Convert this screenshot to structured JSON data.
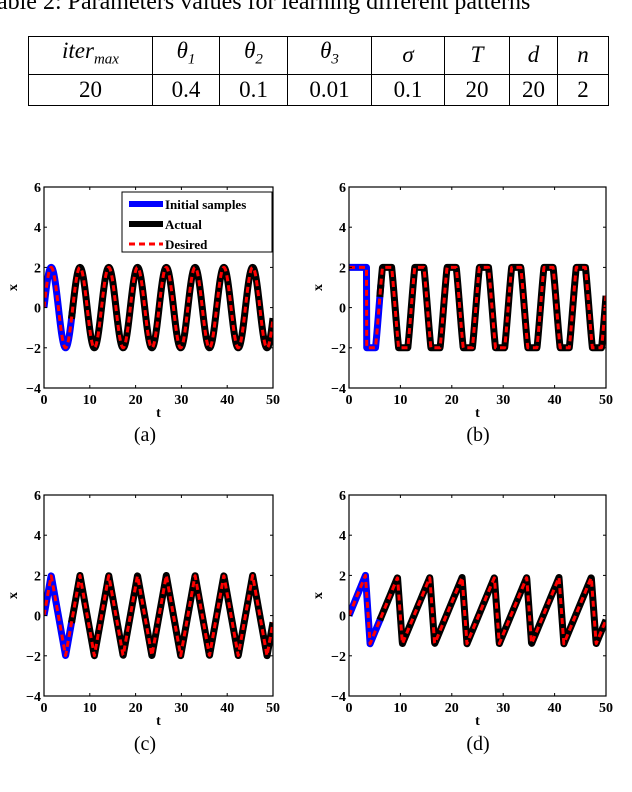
{
  "caption": "Table 2: Parameters values for learning different patterns",
  "table": {
    "headers": [
      {
        "base": "iter",
        "sub": "max"
      },
      {
        "base": "θ",
        "sub": "1"
      },
      {
        "base": "θ",
        "sub": "2"
      },
      {
        "base": "θ",
        "sub": "3"
      },
      {
        "base": "σ",
        "sub": ""
      },
      {
        "base": "T",
        "sub": ""
      },
      {
        "base": "d",
        "sub": ""
      },
      {
        "base": "n",
        "sub": ""
      }
    ],
    "values": [
      "20",
      "0.4",
      "0.1",
      "0.01",
      "0.1",
      "20",
      "20",
      "2"
    ]
  },
  "legend": {
    "items": [
      {
        "label": "Initial samples",
        "color": "#0000ff",
        "style": "solid"
      },
      {
        "label": "Actual",
        "color": "#000000",
        "style": "solid"
      },
      {
        "label": "Desired",
        "color": "#ff0000",
        "style": "dashed"
      }
    ]
  },
  "subfigures": [
    {
      "id": "a",
      "caption": "(a)",
      "xlabel": "t",
      "ylabel": "x"
    },
    {
      "id": "b",
      "caption": "(b)",
      "xlabel": "t",
      "ylabel": "x"
    },
    {
      "id": "c",
      "caption": "(c)",
      "xlabel": "t",
      "ylabel": "x"
    },
    {
      "id": "d",
      "caption": "(d)",
      "xlabel": "t",
      "ylabel": "x"
    }
  ],
  "axes": {
    "xticks": [
      "0",
      "10",
      "20",
      "30",
      "40",
      "50"
    ],
    "yticks": [
      "−4",
      "−2",
      "0",
      "2",
      "4",
      "6"
    ]
  },
  "chart_data": [
    {
      "type": "line",
      "panel": "(a)",
      "pattern": "sine",
      "title": "",
      "xlabel": "t",
      "ylabel": "x",
      "xlim": [
        0,
        50
      ],
      "ylim": [
        -4,
        6
      ],
      "grid": false,
      "legend_position": "upper right",
      "series": [
        {
          "name": "Initial samples",
          "color": "#0000ff",
          "t_range": [
            0,
            6
          ],
          "function": "2*sin(t)"
        },
        {
          "name": "Actual",
          "color": "#000000",
          "t_range": [
            6,
            50
          ],
          "function": "2*sin(t)"
        },
        {
          "name": "Desired",
          "color": "#ff0000",
          "t_range": [
            0,
            50
          ],
          "function": "2*sin(t)"
        }
      ],
      "amplitude": 2,
      "period": 6.28
    },
    {
      "type": "line",
      "panel": "(b)",
      "pattern": "square-like",
      "xlabel": "t",
      "ylabel": "x",
      "xlim": [
        0,
        50
      ],
      "ylim": [
        -4,
        6
      ],
      "series": [
        {
          "name": "Initial samples",
          "color": "#0000ff",
          "t_range": [
            0,
            6
          ],
          "description": "holds 2 until t≈3.5, falls to -2 by t≈5"
        },
        {
          "name": "Actual",
          "color": "#000000",
          "t_range": [
            6,
            50
          ],
          "description": "clipped oscillation between -2 and 2"
        },
        {
          "name": "Desired",
          "color": "#ff0000",
          "t_range": [
            0,
            50
          ],
          "description": "clipped oscillation between -2 and 2"
        }
      ],
      "amplitude": 2,
      "period": 6.28
    },
    {
      "type": "line",
      "panel": "(c)",
      "pattern": "triangle",
      "xlabel": "t",
      "ylabel": "x",
      "xlim": [
        0,
        50
      ],
      "ylim": [
        -4,
        6
      ],
      "series": [
        {
          "name": "Initial samples",
          "color": "#0000ff",
          "t_range": [
            0,
            6
          ]
        },
        {
          "name": "Actual",
          "color": "#000000",
          "t_range": [
            6,
            50
          ]
        },
        {
          "name": "Desired",
          "color": "#ff0000",
          "t_range": [
            0,
            50
          ]
        }
      ],
      "amplitude": 2,
      "period": 6.28
    },
    {
      "type": "line",
      "panel": "(d)",
      "pattern": "sawtooth",
      "xlabel": "t",
      "ylabel": "x",
      "xlim": [
        0,
        50
      ],
      "ylim": [
        -4,
        6
      ],
      "series": [
        {
          "name": "Initial samples",
          "color": "#0000ff",
          "t_range": [
            0,
            6
          ]
        },
        {
          "name": "Actual",
          "color": "#000000",
          "t_range": [
            6,
            50
          ]
        },
        {
          "name": "Desired",
          "color": "#ff0000",
          "t_range": [
            0,
            50
          ]
        }
      ],
      "max": 1.9,
      "min": -1.4,
      "period": 6.28
    }
  ]
}
